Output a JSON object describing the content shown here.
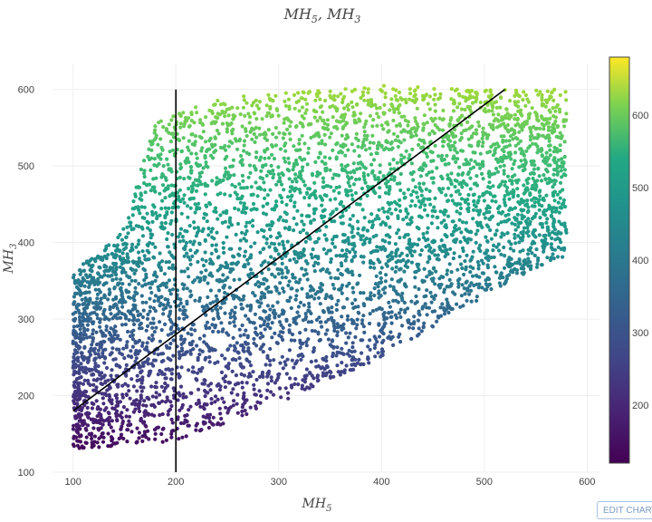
{
  "chart_data": {
    "type": "scatter",
    "title": {
      "base1": "MH",
      "sub1": "5",
      "sep": ", ",
      "base2": "MH",
      "sub2": "3"
    },
    "xlabel": {
      "base": "MH",
      "sub": "5"
    },
    "ylabel": {
      "base": "MH",
      "sub": "3"
    },
    "xlim": [
      80,
      612
    ],
    "ylim": [
      100,
      634
    ],
    "xticks": [
      100,
      200,
      300,
      400,
      500,
      600
    ],
    "yticks": [
      100,
      200,
      300,
      400,
      500,
      600
    ],
    "grid": true,
    "marker_color_by": "MH3",
    "colorscale": "viridis",
    "colorbar": {
      "range": [
        120,
        680
      ],
      "ticks": [
        200,
        300,
        400,
        500,
        600
      ],
      "position": "right"
    },
    "points_description_region": {
      "x_range": [
        100,
        580
      ],
      "lower_boundary": [
        [
          100,
          130
        ],
        [
          200,
          140
        ],
        [
          300,
          190
        ],
        [
          400,
          250
        ],
        [
          450,
          290
        ],
        [
          500,
          330
        ],
        [
          570,
          380
        ]
      ],
      "upper_boundary": [
        [
          100,
          360
        ],
        [
          150,
          420
        ],
        [
          180,
          560
        ],
        [
          250,
          590
        ],
        [
          400,
          605
        ],
        [
          500,
          600
        ],
        [
          580,
          600
        ]
      ]
    },
    "lines": [
      {
        "name": "",
        "x": [
          100,
          520
        ],
        "y": [
          180,
          600
        ],
        "color": "#000000"
      },
      {
        "name": "",
        "x": [
          200,
          200
        ],
        "y": [
          100,
          600
        ],
        "color": "#000000"
      }
    ]
  },
  "ui": {
    "edit_button": "EDIT CHART"
  }
}
